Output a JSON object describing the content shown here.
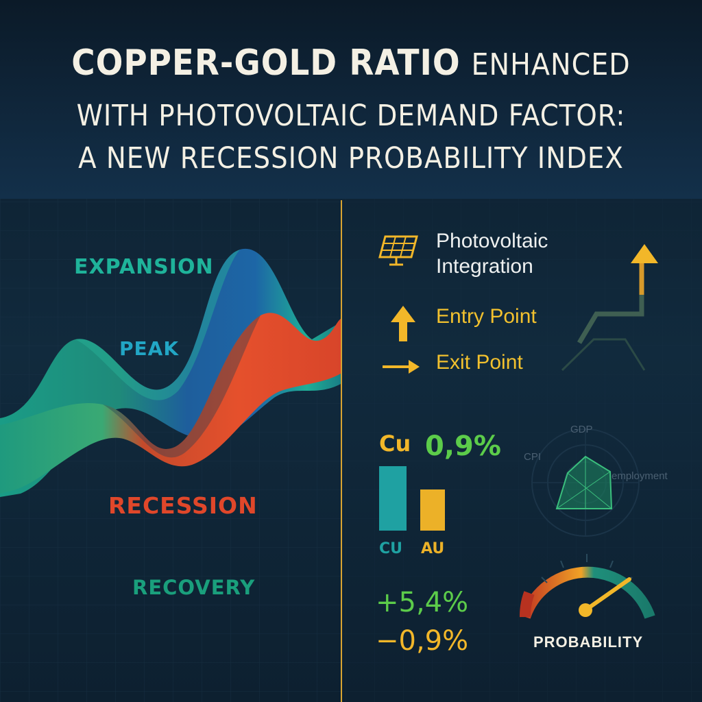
{
  "title": {
    "line1_bold": "COPPER-GOLD RATIO",
    "line1_rest": "ENHANCED",
    "line2": "WITH PHOTOVOLTAIC DEMAND FACTOR:",
    "line3": "A NEW RECESSION PROBABILITY INDEX"
  },
  "cycle": {
    "expansion": "EXPANSION",
    "peak": "PEAK",
    "recession": "RECESSION",
    "recovery": "RECOVERY"
  },
  "legend": {
    "photovoltaic_line1": "Photovoltaic",
    "photovoltaic_line2": "Integration",
    "entry": "Entry Point",
    "exit": "Exit Point",
    "solar_panel_icon": "solar-panel-icon",
    "up_arrow_icon": "up-arrow-icon",
    "right_arrow_icon": "right-arrow-icon"
  },
  "metals": {
    "cu_symbol": "Cu",
    "cu_change": "0,9%",
    "cu_bar_label": "CU",
    "au_bar_label": "AU",
    "cu_bar_level": 1.0,
    "au_bar_level": 0.64,
    "positive_change": "+5,4%",
    "negative_change": "−0,9%"
  },
  "radar": {
    "axis_top": "GDP",
    "axis_left": "CPI",
    "axis_right": "employment"
  },
  "gauge": {
    "label": "PROBABILITY",
    "level": 0.78
  },
  "colors": {
    "background": "#0f2233",
    "teal": "#1fb39a",
    "blue": "#2466a8",
    "red": "#e0472a",
    "gold": "#f2b729",
    "green": "#56c84a",
    "title": "#f4f0e4"
  }
}
